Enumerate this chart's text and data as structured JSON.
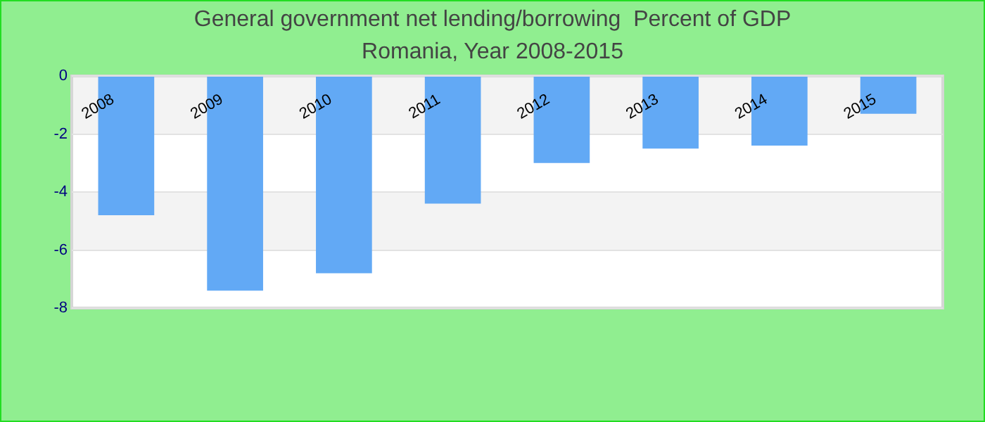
{
  "chart_data": {
    "type": "bar",
    "title": "General government net lending/borrowing  Percent of GDP",
    "subtitle": "Romania, Year 2008-2015",
    "categories": [
      "2008",
      "2009",
      "2010",
      "2011",
      "2012",
      "2013",
      "2014",
      "2015"
    ],
    "values": [
      -4.8,
      -7.4,
      -6.8,
      -4.4,
      -3.0,
      -2.5,
      -2.4,
      -1.3
    ],
    "color": "#62a9f5",
    "ylim": [
      -8,
      0
    ],
    "yticks": [
      0,
      -2,
      -4,
      -6,
      -8
    ],
    "grid": true
  }
}
